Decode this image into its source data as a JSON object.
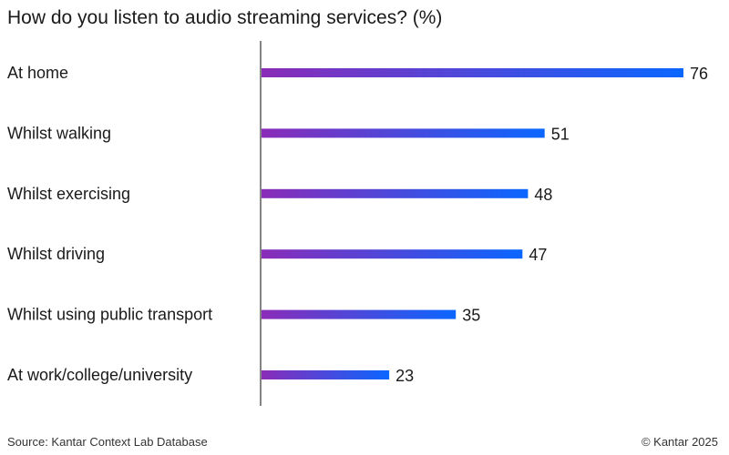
{
  "chart_data": {
    "type": "bar",
    "orientation": "horizontal",
    "title": "How do you listen to audio streaming services? (%)",
    "categories": [
      "At home",
      "Whilst walking",
      "Whilst exercising",
      "Whilst driving",
      "Whilst using public transport",
      "At work/college/university"
    ],
    "values": [
      76,
      51,
      48,
      47,
      35,
      23
    ],
    "xlim": [
      0,
      76
    ],
    "grid": false,
    "data_labels": true,
    "colors": {
      "gradient_start": "#8a2cb8",
      "gradient_end": "#0a66ff"
    }
  },
  "footer": {
    "source": "Source: Kantar Context Lab Database",
    "copyright": "© Kantar 2025"
  }
}
